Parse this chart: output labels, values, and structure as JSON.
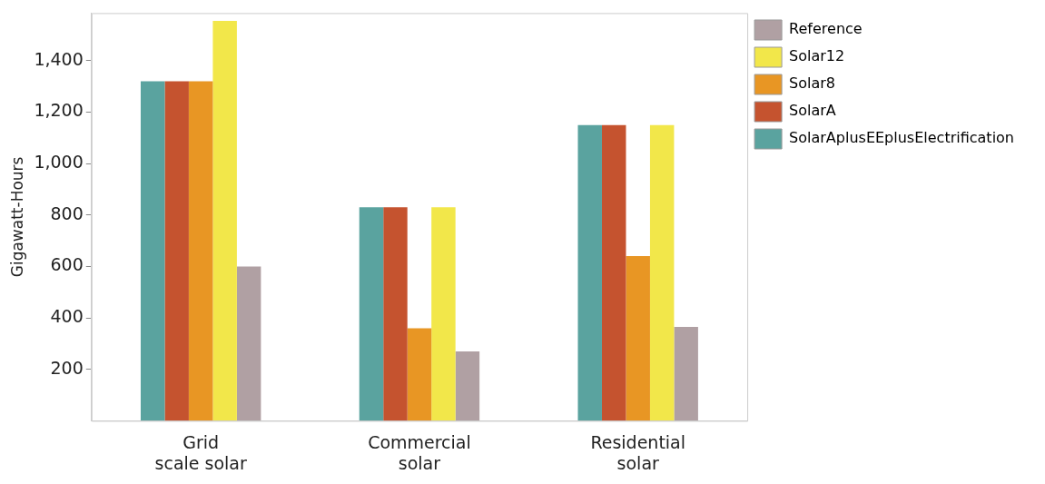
{
  "chart_data": {
    "type": "bar",
    "ylabel": "Gigawatt-Hours",
    "categories": [
      "Grid\nscale solar",
      "Commercial\nsolar",
      "Residential\nsolar"
    ],
    "series": [
      {
        "name": "SolarAplusEEplusElectrification",
        "color": "#5aa39f",
        "values": [
          1320,
          830,
          1150
        ]
      },
      {
        "name": "SolarA",
        "color": "#c5532f",
        "values": [
          1320,
          830,
          1150
        ]
      },
      {
        "name": "Solar8",
        "color": "#e89624",
        "values": [
          1320,
          360,
          640
        ]
      },
      {
        "name": "Solar12",
        "color": "#f2e74a",
        "values": [
          1555,
          830,
          1150
        ]
      },
      {
        "name": "Reference",
        "color": "#b0a0a3",
        "values": [
          600,
          270,
          365
        ]
      }
    ],
    "ylim": [
      0,
      1585
    ],
    "yticks": [
      {
        "value": 200,
        "label": "200"
      },
      {
        "value": 400,
        "label": "400"
      },
      {
        "value": 600,
        "label": "600"
      },
      {
        "value": 800,
        "label": "800"
      },
      {
        "value": 1000,
        "label": "1,000"
      },
      {
        "value": 1200,
        "label": "1,200"
      },
      {
        "value": 1400,
        "label": "1,400"
      }
    ],
    "grid": false,
    "legend": "top right"
  }
}
